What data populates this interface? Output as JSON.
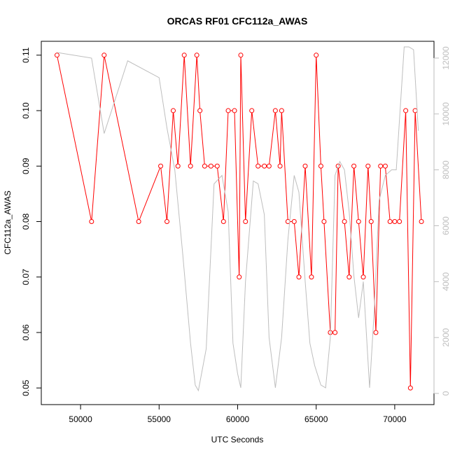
{
  "chart_data": {
    "type": "line",
    "title": "ORCAS RF01 CFC112a_AWAS",
    "xlabel": "UTC Seconds",
    "ylabel": "CFC112a_AWAS",
    "xlim": [
      47500,
      72500
    ],
    "ylim": [
      0.047,
      0.1125
    ],
    "y2lim": [
      -400,
      12600
    ],
    "x_ticks": [
      50000,
      55000,
      60000,
      65000,
      70000
    ],
    "y_ticks": [
      0.05,
      0.06,
      0.07,
      0.08,
      0.09,
      0.1,
      0.11
    ],
    "y2_ticks": [
      0,
      2000,
      4000,
      6000,
      8000,
      10000,
      12000
    ],
    "x_tick_labels": [
      "50000",
      "55000",
      "60000",
      "65000",
      "70000"
    ],
    "y_tick_labels": [
      "0.05",
      "0.06",
      "0.07",
      "0.08",
      "0.09",
      "0.10",
      "0.11"
    ],
    "y2_tick_labels": [
      "0",
      "2000",
      "4000",
      "6000",
      "8000",
      "10000",
      "12000"
    ],
    "grid": false,
    "colors": {
      "series_main": "#ff0000",
      "series_secondary": "#bebebe",
      "axis": "#000000"
    },
    "series": [
      {
        "axis": "left",
        "marker": "open-circle",
        "x": [
          48500,
          50700,
          51500,
          53700,
          55100,
          55500,
          55900,
          56200,
          56600,
          57000,
          57400,
          57600,
          57900,
          58300,
          58700,
          59100,
          59400,
          59800,
          60100,
          60200,
          60500,
          60900,
          61300,
          61700,
          62000,
          62400,
          62700,
          62800,
          63200,
          63600,
          63900,
          64300,
          64700,
          65000,
          65300,
          65500,
          65900,
          66200,
          66400,
          66800,
          67100,
          67400,
          67700,
          68000,
          68300,
          68500,
          68800,
          69100,
          69400,
          69700,
          70000,
          70300,
          70700,
          71000,
          71300,
          71700
        ],
        "y": [
          0.11,
          0.08,
          0.11,
          0.08,
          0.09,
          0.08,
          0.1,
          0.09,
          0.11,
          0.09,
          0.11,
          0.1,
          0.09,
          0.09,
          0.09,
          0.08,
          0.1,
          0.1,
          0.07,
          0.11,
          0.08,
          0.1,
          0.09,
          0.09,
          0.09,
          0.1,
          0.09,
          0.1,
          0.08,
          0.08,
          0.07,
          0.09,
          0.07,
          0.11,
          0.09,
          0.08,
          0.06,
          0.06,
          0.09,
          0.08,
          0.07,
          0.09,
          0.08,
          0.07,
          0.09,
          0.08,
          0.06,
          0.09,
          0.09,
          0.08,
          0.08,
          0.08,
          0.1,
          0.05,
          0.1,
          0.08
        ]
      },
      {
        "axis": "right",
        "marker": "none",
        "x": [
          48500,
          50700,
          51500,
          53000,
          55000,
          55500,
          56000,
          56500,
          57000,
          57300,
          57500,
          58000,
          58500,
          59000,
          59400,
          59700,
          60000,
          60200,
          60500,
          61000,
          61300,
          61700,
          62000,
          62400,
          62800,
          63200,
          63600,
          63900,
          64300,
          64600,
          64900,
          65300,
          65600,
          65900,
          66200,
          66500,
          66800,
          67100,
          67400,
          67700,
          68000,
          68400,
          68700,
          69000,
          69400,
          69800,
          70100,
          70600,
          70900,
          71200,
          71500
        ],
        "y": [
          12200,
          12000,
          9300,
          11900,
          11300,
          9500,
          8000,
          5000,
          1800,
          300,
          100,
          1600,
          7500,
          7800,
          6500,
          1800,
          700,
          200,
          4000,
          7600,
          7500,
          6400,
          2000,
          200,
          2000,
          5500,
          7800,
          7200,
          4000,
          1800,
          1000,
          300,
          200,
          2000,
          7800,
          8300,
          8000,
          6500,
          4200,
          2700,
          4000,
          200,
          3000,
          6900,
          7800,
          8000,
          8000,
          12400,
          12400,
          12300,
          9400
        ]
      }
    ]
  }
}
